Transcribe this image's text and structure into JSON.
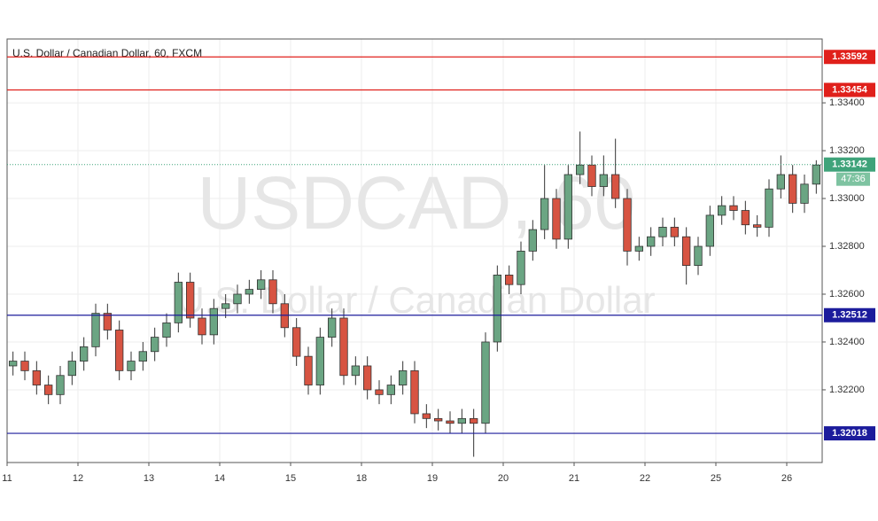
{
  "chart_data": {
    "type": "candlestick",
    "title": "U.S. Dollar / Canadian Dollar, 60, FXCM",
    "watermark": "USDCAD, 60",
    "watermark_subtitle": "U.S. Dollar / Canadian Dollar",
    "categories": [
      "11",
      null,
      null,
      null,
      null,
      null,
      "12",
      null,
      null,
      null,
      null,
      null,
      "13",
      null,
      null,
      null,
      null,
      null,
      "14",
      null,
      null,
      null,
      null,
      null,
      "15",
      null,
      null,
      null,
      null,
      null,
      "18",
      null,
      null,
      null,
      null,
      null,
      "19",
      null,
      null,
      null,
      null,
      null,
      "20",
      null,
      null,
      null,
      null,
      null,
      "21",
      null,
      null,
      null,
      null,
      null,
      "22",
      null,
      null,
      null,
      null,
      null,
      "25",
      null,
      null,
      null,
      null,
      null,
      "26",
      null,
      null
    ],
    "open": [
      1.323,
      1.3232,
      1.3228,
      1.3222,
      1.3218,
      1.3226,
      1.3232,
      1.3238,
      1.3252,
      1.3245,
      1.3228,
      1.3232,
      1.3236,
      1.3242,
      1.3248,
      1.3265,
      1.325,
      1.3243,
      1.3254,
      1.3256,
      1.326,
      1.3262,
      1.3266,
      1.3256,
      1.3246,
      1.3234,
      1.3222,
      1.3242,
      1.325,
      1.3226,
      1.323,
      1.322,
      1.3218,
      1.3222,
      1.3228,
      1.321,
      1.3208,
      1.3207,
      1.3206,
      1.3208,
      1.3206,
      1.324,
      1.3268,
      1.3264,
      1.3278,
      1.3287,
      1.33,
      1.3283,
      1.331,
      1.3314,
      1.3305,
      1.331,
      1.33,
      1.3278,
      1.328,
      1.3284,
      1.3288,
      1.3284,
      1.3272,
      1.328,
      1.3293,
      1.3297,
      1.3295,
      1.3289,
      1.3288,
      1.3304,
      1.331,
      1.3298,
      1.3306
    ],
    "high": [
      1.3236,
      1.3236,
      1.3232,
      1.3226,
      1.323,
      1.3236,
      1.3242,
      1.3256,
      1.3256,
      1.3249,
      1.3236,
      1.324,
      1.3246,
      1.3252,
      1.3269,
      1.3269,
      1.3254,
      1.3258,
      1.326,
      1.3264,
      1.3266,
      1.327,
      1.327,
      1.326,
      1.325,
      1.3238,
      1.3246,
      1.3254,
      1.3254,
      1.3234,
      1.3234,
      1.3224,
      1.3226,
      1.3232,
      1.3232,
      1.3214,
      1.3212,
      1.3211,
      1.3212,
      1.3212,
      1.3244,
      1.3272,
      1.3272,
      1.3282,
      1.3291,
      1.3314,
      1.3304,
      1.3314,
      1.3328,
      1.3318,
      1.3318,
      1.3325,
      1.3304,
      1.3284,
      1.3288,
      1.3292,
      1.3292,
      1.3288,
      1.3284,
      1.3297,
      1.3301,
      1.3301,
      1.3299,
      1.3293,
      1.3308,
      1.3318,
      1.3314,
      1.331,
      1.3316
    ],
    "low": [
      1.3226,
      1.3224,
      1.3218,
      1.3214,
      1.3214,
      1.3222,
      1.3228,
      1.3234,
      1.3241,
      1.3224,
      1.3224,
      1.3228,
      1.3232,
      1.3238,
      1.3244,
      1.3246,
      1.3239,
      1.3239,
      1.325,
      1.3252,
      1.3256,
      1.3258,
      1.3252,
      1.3242,
      1.323,
      1.3218,
      1.3218,
      1.3238,
      1.3222,
      1.3222,
      1.3216,
      1.3214,
      1.3214,
      1.3218,
      1.3206,
      1.3204,
      1.3203,
      1.3202,
      1.3202,
      1.3192,
      1.3202,
      1.3236,
      1.326,
      1.326,
      1.3274,
      1.3283,
      1.3279,
      1.3279,
      1.3306,
      1.3301,
      1.3301,
      1.3296,
      1.3272,
      1.3274,
      1.3276,
      1.328,
      1.328,
      1.3264,
      1.3268,
      1.3276,
      1.3289,
      1.3291,
      1.3285,
      1.3284,
      1.3284,
      1.33,
      1.3294,
      1.3294,
      1.3302
    ],
    "close": [
      1.3232,
      1.3228,
      1.3222,
      1.3218,
      1.3226,
      1.3232,
      1.3238,
      1.3252,
      1.3245,
      1.3228,
      1.3232,
      1.3236,
      1.3242,
      1.3248,
      1.3265,
      1.325,
      1.3243,
      1.3254,
      1.3256,
      1.326,
      1.3262,
      1.3266,
      1.3256,
      1.3246,
      1.3234,
      1.3222,
      1.3242,
      1.325,
      1.3226,
      1.323,
      1.322,
      1.3218,
      1.3222,
      1.3228,
      1.321,
      1.3208,
      1.3207,
      1.3206,
      1.3208,
      1.3206,
      1.324,
      1.3268,
      1.3264,
      1.3278,
      1.3287,
      1.33,
      1.3283,
      1.331,
      1.3314,
      1.3305,
      1.331,
      1.33,
      1.3278,
      1.328,
      1.3284,
      1.3288,
      1.3284,
      1.3272,
      1.328,
      1.3293,
      1.3297,
      1.3295,
      1.3289,
      1.3288,
      1.3304,
      1.331,
      1.3298,
      1.3306,
      1.3314
    ],
    "up_color": "#6ba583",
    "down_color": "#d75442",
    "ylim": [
      1.31896,
      1.33667
    ],
    "yticks": [
      {
        "value": 1.322,
        "label": "1.32200"
      },
      {
        "value": 1.324,
        "label": "1.32400"
      },
      {
        "value": 1.326,
        "label": "1.32600"
      },
      {
        "value": 1.328,
        "label": "1.32800"
      },
      {
        "value": 1.33,
        "label": "1.33000"
      },
      {
        "value": 1.332,
        "label": "1.33200"
      },
      {
        "value": 1.334,
        "label": "1.33400"
      }
    ],
    "grid": true,
    "levels": [
      {
        "value": 1.33592,
        "color": "#e0201b"
      },
      {
        "value": 1.33454,
        "color": "#e0201b"
      },
      {
        "value": 1.32512,
        "color": "#1c1c9c"
      },
      {
        "value": 1.32018,
        "color": "#1c1c9c"
      }
    ],
    "last_price": {
      "value": 1.33142,
      "color": "#3fa37a",
      "countdown": "47:36"
    }
  }
}
